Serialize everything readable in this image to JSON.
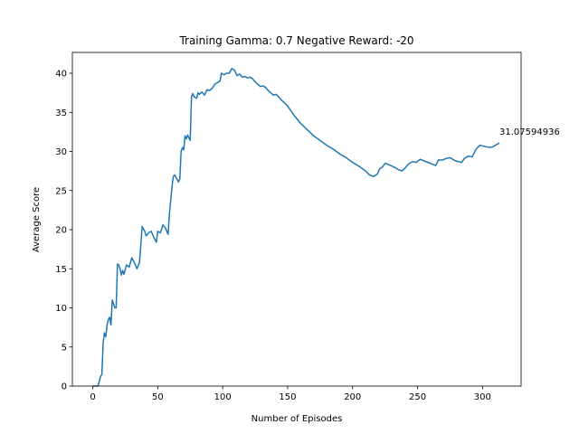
{
  "chart_data": {
    "type": "line",
    "title": "Training Gamma: 0.7 Negative Reward: -20",
    "x_label": "Number of Episodes",
    "y_label": "Average Score",
    "annotation": "31.07594936",
    "x": [
      0,
      2,
      4,
      6,
      7,
      8,
      9,
      10,
      11,
      12,
      13,
      14,
      15,
      16,
      17,
      18,
      19,
      20,
      21,
      22,
      23,
      24,
      26,
      28,
      30,
      32,
      34,
      36,
      38,
      40,
      41,
      43,
      45,
      47,
      49,
      50,
      52,
      54,
      56,
      58,
      59,
      61,
      62,
      63,
      65,
      66,
      67,
      68,
      69,
      70,
      71,
      72,
      73,
      75,
      76,
      77,
      78,
      80,
      81,
      82,
      84,
      86,
      88,
      90,
      92,
      94,
      96,
      98,
      99,
      101,
      103,
      105,
      107,
      109,
      111,
      113,
      115,
      117,
      119,
      121,
      123,
      125,
      127,
      129,
      131,
      133,
      135,
      137,
      139,
      141,
      143,
      145,
      147,
      150,
      155,
      160,
      165,
      170,
      175,
      180,
      185,
      190,
      195,
      200,
      205,
      210,
      213,
      216,
      219,
      221,
      223,
      225,
      228,
      232,
      235,
      238,
      240,
      243,
      246,
      249,
      252,
      255,
      258,
      261,
      264,
      266,
      269,
      272,
      275,
      278,
      281,
      284,
      286,
      289,
      292,
      295,
      298,
      300,
      303,
      306,
      308,
      311,
      313
    ],
    "series": [
      {
        "name": "Average Score",
        "color": "#1f77b4",
        "values": [
          0,
          0,
          0,
          1.2,
          1.5,
          5.5,
          6.8,
          6.3,
          7.8,
          8.5,
          8.8,
          7.8,
          11,
          10.5,
          10,
          10,
          15.6,
          15.5,
          15,
          14.2,
          14.8,
          14.3,
          15.5,
          15.2,
          16.4,
          15.8,
          15,
          15.8,
          20.4,
          19.8,
          19.2,
          19.6,
          19.8,
          19,
          18.4,
          19.8,
          19.6,
          20.6,
          20.2,
          19.4,
          22,
          25.5,
          26.8,
          27,
          26.4,
          26.1,
          26.5,
          30,
          30.5,
          30.2,
          32,
          31.6,
          32.1,
          31.4,
          37,
          37.4,
          37,
          36.8,
          37.5,
          37.3,
          37.6,
          37.2,
          37.9,
          37.8,
          38.1,
          38.6,
          38.8,
          39,
          40,
          39.8,
          40,
          40,
          40.6,
          40.4,
          39.7,
          39.9,
          39.5,
          39.6,
          39.4,
          39.5,
          39.3,
          38.9,
          38.6,
          38.3,
          38.4,
          38.2,
          37.8,
          37.5,
          37.2,
          37.3,
          37,
          36.6,
          36.3,
          35.8,
          34.6,
          33.6,
          32.8,
          32,
          31.4,
          30.8,
          30.3,
          29.7,
          29.2,
          28.6,
          28.1,
          27.5,
          27,
          26.8,
          27.1,
          27.8,
          28,
          28.5,
          28.3,
          28,
          27.7,
          27.5,
          27.8,
          28.4,
          28.7,
          28.6,
          29,
          28.8,
          28.6,
          28.4,
          28.2,
          28.9,
          28.9,
          29.1,
          29.2,
          28.9,
          28.7,
          28.6,
          29.1,
          29.4,
          29.3,
          30.3,
          30.8,
          30.7,
          30.6,
          30.5,
          30.6,
          30.9,
          31.07594936
        ]
      }
    ],
    "xlim": [
      -15.7,
      329.7
    ],
    "ylim": [
      0,
      42.66
    ],
    "xticks": [
      0,
      50,
      100,
      150,
      200,
      250,
      300
    ],
    "yticks": [
      0,
      5,
      10,
      15,
      20,
      25,
      30,
      35,
      40
    ]
  }
}
